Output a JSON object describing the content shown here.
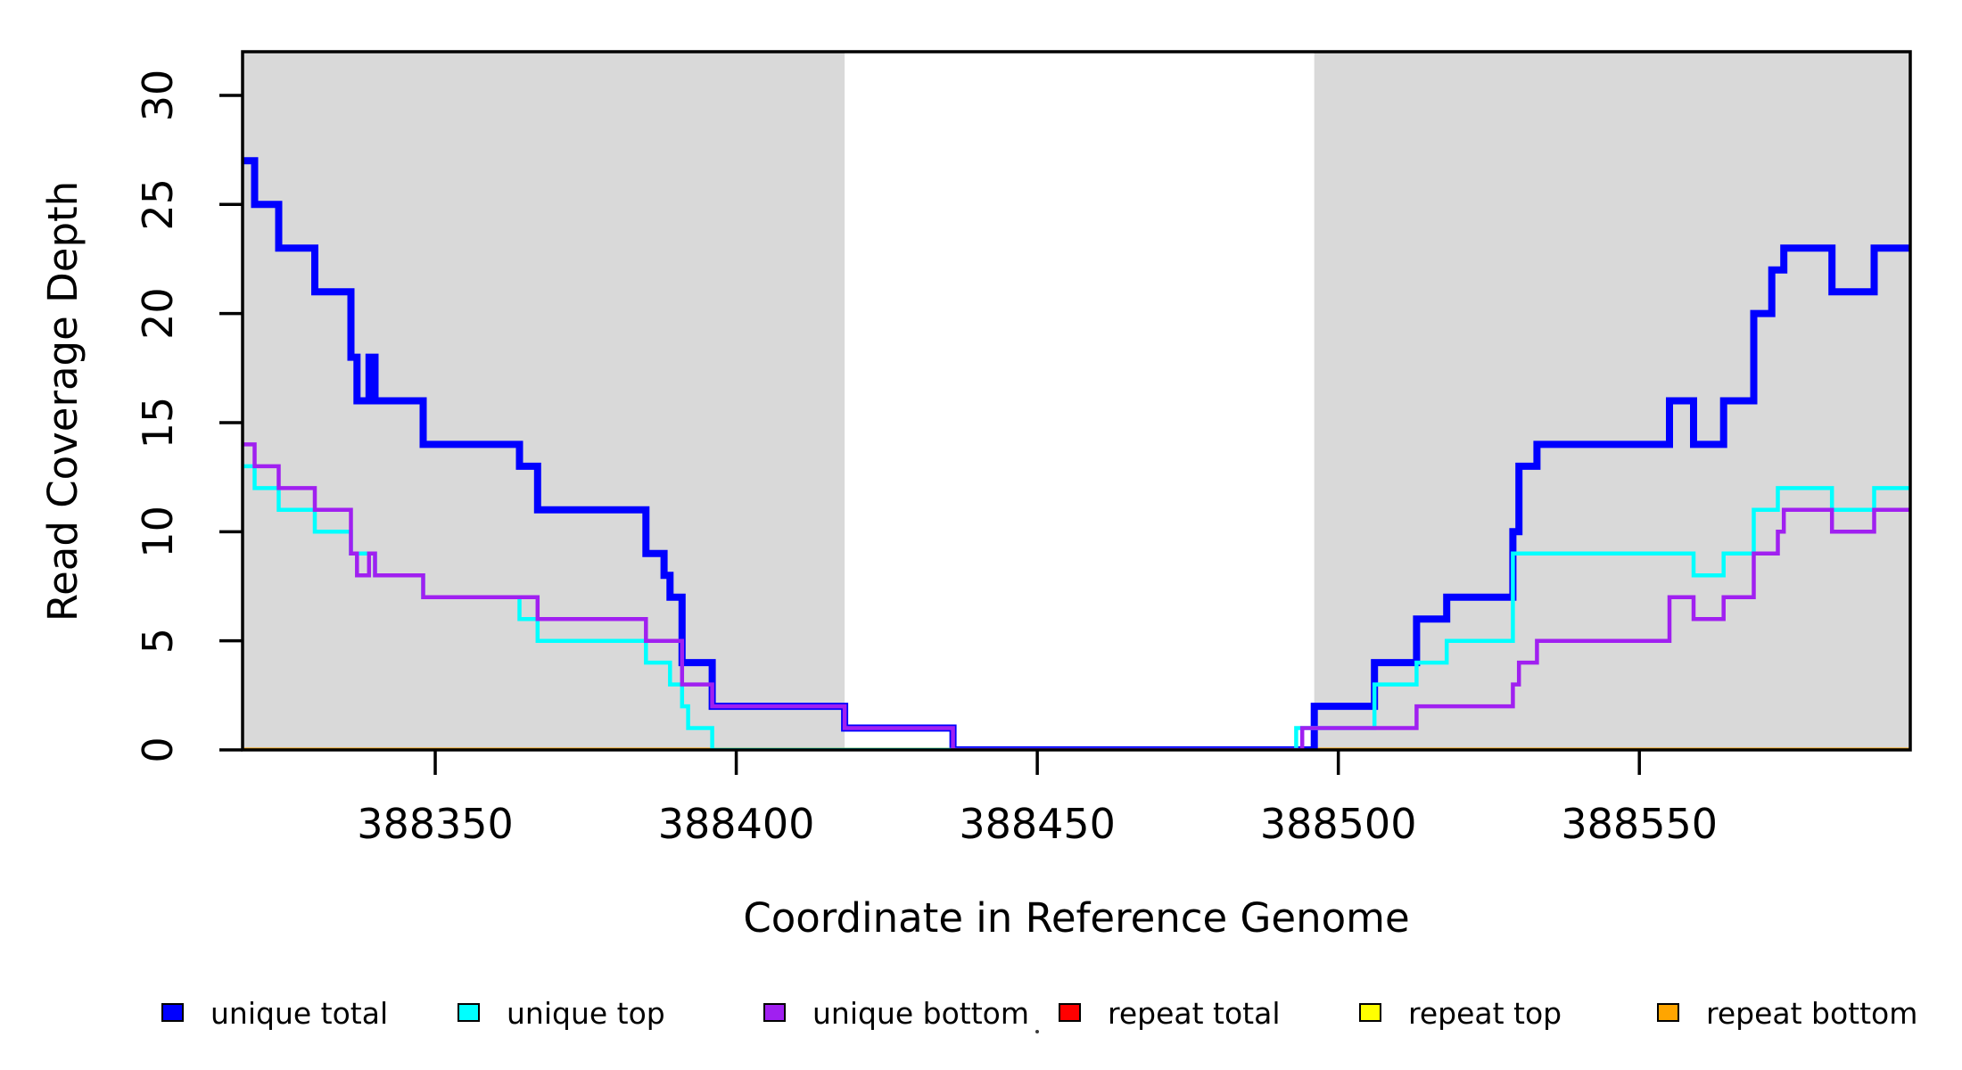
{
  "chart_data": {
    "type": "line",
    "subtype": "step-after",
    "title": "",
    "xlabel": "Coordinate in Reference Genome",
    "ylabel": "Read Coverage Depth",
    "xlim": [
      388318,
      388595
    ],
    "ylim": [
      0,
      32
    ],
    "x_ticks": [
      "388350",
      "388400",
      "388450",
      "388500",
      "388550"
    ],
    "x_tick_values": [
      388350,
      388400,
      388450,
      388500,
      388550
    ],
    "y_ticks": [
      "0",
      "5",
      "10",
      "15",
      "20",
      "25",
      "30"
    ],
    "y_tick_values": [
      0,
      5,
      10,
      15,
      20,
      25,
      30
    ],
    "grid": false,
    "legend_position": "bottom",
    "plot_background": "#ffffff",
    "shaded_regions": [
      {
        "x0": 388318,
        "x1": 388418,
        "color": "#d9d9d9"
      },
      {
        "x0": 388496,
        "x1": 388595,
        "color": "#d9d9d9"
      }
    ],
    "series": [
      {
        "name": "repeat-total",
        "label": "repeat total",
        "color": "#ff0000",
        "width": 4.5,
        "points": [
          [
            388318,
            0
          ]
        ]
      },
      {
        "name": "repeat-top",
        "label": "repeat top",
        "color": "#ffff00",
        "width": 4.5,
        "points": [
          [
            388318,
            0
          ]
        ]
      },
      {
        "name": "repeat-bottom",
        "label": "repeat bottom",
        "color": "#ffa500",
        "width": 5,
        "points": [
          [
            388318,
            0
          ]
        ]
      },
      {
        "name": "unique-total",
        "label": "unique total",
        "color": "#0000ff",
        "width": 8,
        "points": [
          [
            388318,
            27
          ],
          [
            388320,
            25
          ],
          [
            388324,
            23
          ],
          [
            388330,
            21
          ],
          [
            388336,
            18
          ],
          [
            388337,
            16
          ],
          [
            388339,
            18
          ],
          [
            388340,
            16
          ],
          [
            388348,
            14
          ],
          [
            388364,
            13
          ],
          [
            388367,
            11
          ],
          [
            388385,
            9
          ],
          [
            388388,
            8
          ],
          [
            388389,
            7
          ],
          [
            388391,
            4
          ],
          [
            388396,
            2
          ],
          [
            388418,
            1
          ],
          [
            388436,
            0
          ],
          [
            388496,
            2
          ],
          [
            388506,
            4
          ],
          [
            388513,
            6
          ],
          [
            388518,
            7
          ],
          [
            388529,
            10
          ],
          [
            388530,
            13
          ],
          [
            388533,
            14
          ],
          [
            388555,
            16
          ],
          [
            388559,
            14
          ],
          [
            388564,
            16
          ],
          [
            388569,
            20
          ],
          [
            388572,
            22
          ],
          [
            388574,
            23
          ],
          [
            388582,
            21
          ],
          [
            388589,
            23
          ]
        ]
      },
      {
        "name": "unique-top",
        "label": "unique top",
        "color": "#00ffff",
        "width": 4.5,
        "points": [
          [
            388318,
            13
          ],
          [
            388320,
            12
          ],
          [
            388324,
            11
          ],
          [
            388330,
            10
          ],
          [
            388336,
            9
          ],
          [
            388340,
            8
          ],
          [
            388348,
            7
          ],
          [
            388364,
            6
          ],
          [
            388367,
            5
          ],
          [
            388385,
            4
          ],
          [
            388389,
            3
          ],
          [
            388391,
            2
          ],
          [
            388392,
            1
          ],
          [
            388396,
            0
          ],
          [
            388493,
            1
          ],
          [
            388506,
            3
          ],
          [
            388513,
            4
          ],
          [
            388518,
            5
          ],
          [
            388529,
            9
          ],
          [
            388559,
            8
          ],
          [
            388564,
            9
          ],
          [
            388569,
            11
          ],
          [
            388573,
            12
          ],
          [
            388582,
            11
          ],
          [
            388589,
            12
          ]
        ]
      },
      {
        "name": "unique-bottom",
        "label": "unique bottom",
        "color": "#a020f0",
        "width": 4.5,
        "points": [
          [
            388318,
            14
          ],
          [
            388320,
            13
          ],
          [
            388324,
            12
          ],
          [
            388330,
            11
          ],
          [
            388336,
            9
          ],
          [
            388337,
            8
          ],
          [
            388339,
            9
          ],
          [
            388340,
            8
          ],
          [
            388348,
            7
          ],
          [
            388367,
            6
          ],
          [
            388385,
            5
          ],
          [
            388391,
            3
          ],
          [
            388396,
            2
          ],
          [
            388418,
            1
          ],
          [
            388436,
            0
          ],
          [
            388494,
            1
          ],
          [
            388513,
            2
          ],
          [
            388529,
            3
          ],
          [
            388530,
            4
          ],
          [
            388533,
            5
          ],
          [
            388555,
            7
          ],
          [
            388559,
            6
          ],
          [
            388564,
            7
          ],
          [
            388569,
            9
          ],
          [
            388573,
            10
          ],
          [
            388574,
            11
          ],
          [
            388582,
            10
          ],
          [
            388589,
            11
          ]
        ]
      }
    ]
  },
  "legend": {
    "items": [
      {
        "label": "unique total",
        "color": "#0000ff"
      },
      {
        "label": "unique top",
        "color": "#00ffff"
      },
      {
        "label": "unique bottom",
        "color": "#a020f0"
      },
      {
        "label": "repeat total",
        "color": "#ff0000"
      },
      {
        "label": "repeat top",
        "color": "#ffff00"
      },
      {
        "label": "repeat bottom",
        "color": "#ffa500"
      }
    ]
  }
}
